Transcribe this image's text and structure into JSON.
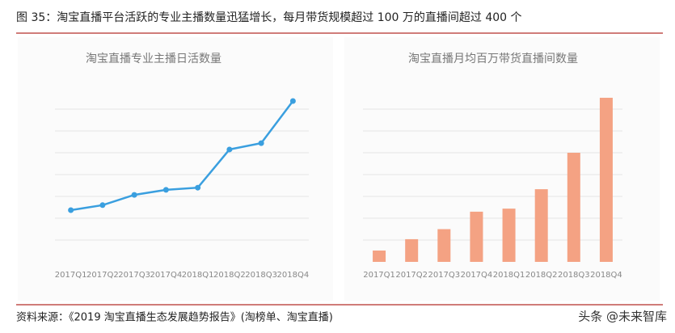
{
  "header": {
    "title": "图 35：淘宝直播平台活跃的专业主播数量迅猛增长，每月带货规模超过 100 万的直播间超过 400 个"
  },
  "chart_data": [
    {
      "type": "line",
      "title": "淘宝直播专业主播日活数量",
      "categories": [
        "2017Q1",
        "2017Q2",
        "2017Q3",
        "2017Q4",
        "2018Q1",
        "2018Q2",
        "2018Q3",
        "2018Q4"
      ],
      "values": [
        2.37,
        2.6,
        3.07,
        3.3,
        3.4,
        5.15,
        5.44,
        7.37
      ],
      "color": "#3a9fdf",
      "ylim": [
        0,
        8
      ],
      "gridlines": [
        1,
        2,
        3,
        4,
        5,
        6,
        7
      ],
      "grid": true
    },
    {
      "type": "bar",
      "title": "淘宝直播月均百万带货直播间数量",
      "categories": [
        "2017Q1",
        "2017Q2",
        "2017Q3",
        "2017Q4",
        "2018Q1",
        "2018Q2",
        "2018Q3",
        "2018Q4"
      ],
      "values": [
        0.52,
        1.04,
        1.5,
        2.3,
        2.44,
        3.33,
        5.0,
        7.52
      ],
      "color": "#f4a283",
      "ylim": [
        0,
        8
      ],
      "gridlines": [
        1,
        2,
        3,
        4,
        5,
        6,
        7
      ],
      "grid": true
    }
  ],
  "footer": {
    "source": "资料来源：《2019 淘宝直播生态发展趋势报告》(淘榜单、淘宝直播)",
    "watermark": "头条 @未来智库"
  }
}
